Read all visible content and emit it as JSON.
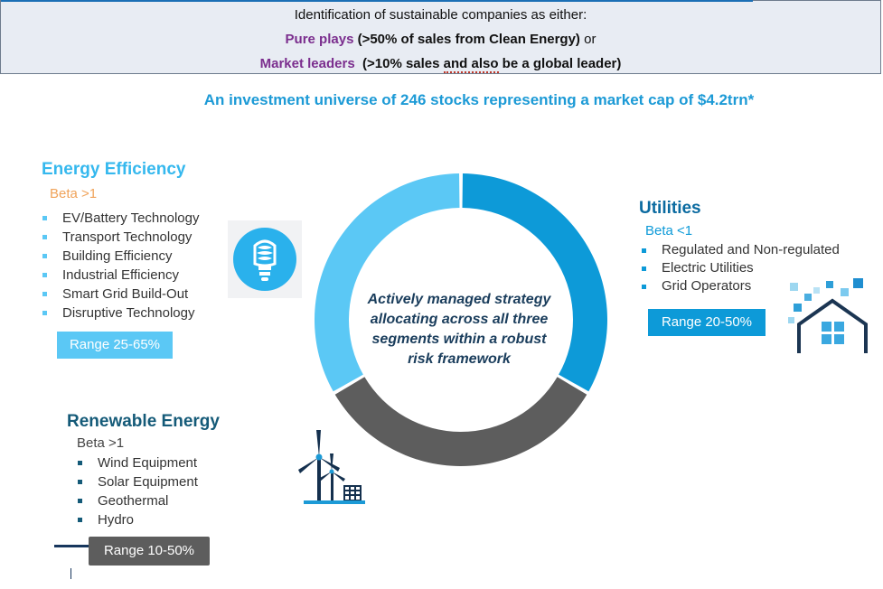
{
  "header": {
    "line1": "Identification of sustainable companies as either:",
    "pure_label": "Pure plays",
    "pure_text": " (>50% of sales from Clean Energy)",
    "pure_or": " or",
    "leader_label": "Market leaders",
    "leader_pre": "  (>10% sales ",
    "leader_mid": "and also",
    "leader_post": " be a global leader)"
  },
  "universe": "An investment universe of 246 stocks representing a market cap of $4.2trn*",
  "center_text": [
    "Actively managed strategy",
    "allocating across all three",
    "segments within a robust",
    "risk framework"
  ],
  "segments": {
    "energy_efficiency": {
      "title": "Energy Efficiency",
      "beta": "Beta >1",
      "items": [
        "EV/Battery Technology",
        "Transport Technology",
        "Building Efficiency",
        "Industrial Efficiency",
        "Smart Grid Build-Out",
        "Disruptive Technology"
      ],
      "range": "Range 25-65%",
      "color": "#5bc8f5",
      "icon": "lightbulb-icon"
    },
    "utilities": {
      "title": "Utilities",
      "beta": "Beta <1",
      "items": [
        "Regulated and Non-regulated",
        "Electric Utilities",
        "Grid Operators"
      ],
      "range": "Range 20-50%",
      "color": "#0d9ad8",
      "icon": "house-icon"
    },
    "renewable_energy": {
      "title": "Renewable Energy",
      "beta": "Beta >1",
      "items": [
        "Wind Equipment",
        "Solar Equipment",
        "Geothermal",
        "Hydro"
      ],
      "range": "Range 10-50%",
      "color": "#5d5d5d",
      "icon": "wind-turbine-icon"
    }
  },
  "colors": {
    "title_efficiency": "#35b8ee",
    "title_utilities": "#0a6aa0",
    "title_renewable": "#145a78",
    "accent": "#1c9ad6",
    "purple": "#7b2e8e"
  }
}
